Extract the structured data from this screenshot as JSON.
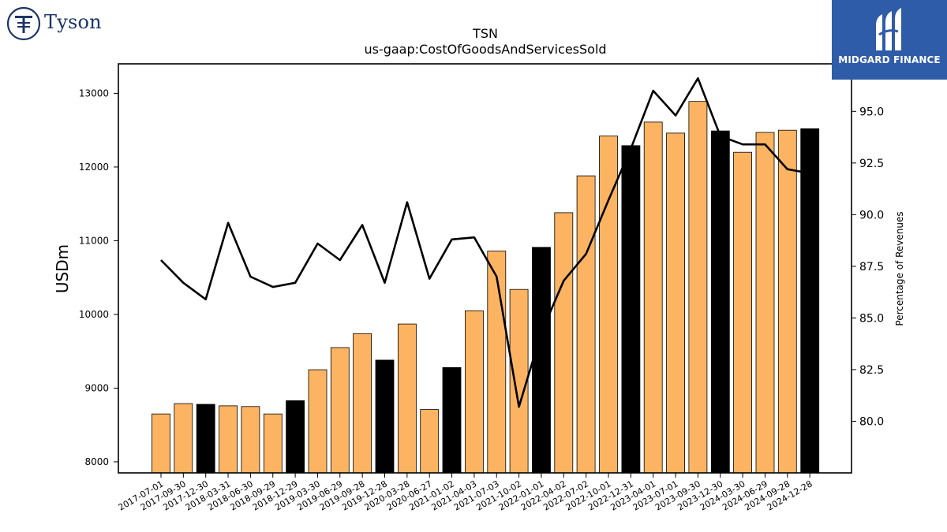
{
  "logos": {
    "left": {
      "name": "Tyson"
    },
    "right": {
      "name": "MIDGARD FINANCE",
      "bg_color": "#2f5ca8"
    }
  },
  "chart_data": {
    "type": "bar",
    "title": "TSN",
    "subtitle": "us-gaap:CostOfGoodsAndServicesSold",
    "ylabel": "USDm",
    "y2label": "Percentage of Revenues",
    "ylim": [
      7850,
      13400
    ],
    "y2lim": [
      77.5,
      97.3
    ],
    "yticks": [
      8000,
      9000,
      10000,
      11000,
      12000,
      13000
    ],
    "y2ticks": [
      "80.0",
      "82.5",
      "85.0",
      "87.5",
      "90.0",
      "92.5",
      "95.0"
    ],
    "categories": [
      "2017-07-01",
      "2017-09-30",
      "2017-12-30",
      "2018-03-31",
      "2018-06-30",
      "2018-09-29",
      "2018-12-29",
      "2019-03-30",
      "2019-06-29",
      "2019-09-28",
      "2019-12-28",
      "2020-03-28",
      "2020-06-27",
      "2021-01-02",
      "2021-04-03",
      "2021-07-03",
      "2021-10-02",
      "2022-01-01",
      "2022-04-02",
      "2022-07-02",
      "2022-10-01",
      "2022-12-31",
      "2023-04-01",
      "2023-07-01",
      "2023-09-30",
      "2023-12-30",
      "2024-03-30",
      "2024-06-29",
      "2024-09-28",
      "2024-12-28"
    ],
    "series": [
      {
        "type": "bar",
        "values": [
          8650,
          8790,
          8780,
          8760,
          8750,
          8650,
          8830,
          9250,
          9550,
          9740,
          9380,
          9870,
          8710,
          9280,
          10050,
          10860,
          10340,
          10910,
          11380,
          11880,
          12420,
          12290,
          12610,
          12460,
          12890,
          12490,
          12200,
          12470,
          12500,
          12520
        ],
        "colors": [
          "#fdb462",
          "#fdb462",
          "#000000",
          "#fdb462",
          "#fdb462",
          "#fdb462",
          "#000000",
          "#fdb462",
          "#fdb462",
          "#fdb462",
          "#000000",
          "#fdb462",
          "#fdb462",
          "#000000",
          "#fdb462",
          "#fdb462",
          "#fdb462",
          "#000000",
          "#fdb462",
          "#fdb462",
          "#fdb462",
          "#000000",
          "#fdb462",
          "#fdb462",
          "#fdb462",
          "#000000",
          "#fdb462",
          "#fdb462",
          "#fdb462",
          "#000000"
        ]
      },
      {
        "type": "line",
        "axis": "right",
        "color": "#000000",
        "values": [
          87.8,
          86.7,
          85.9,
          89.6,
          87.0,
          86.5,
          86.7,
          88.6,
          87.8,
          89.5,
          86.7,
          90.6,
          86.9,
          88.8,
          88.9,
          87.0,
          80.7,
          84.3,
          86.8,
          88.1,
          90.7,
          93.2,
          96.0,
          94.8,
          96.6,
          93.8,
          93.4,
          93.4,
          92.2,
          92.0
        ]
      }
    ],
    "grid": false,
    "legend": "none"
  }
}
